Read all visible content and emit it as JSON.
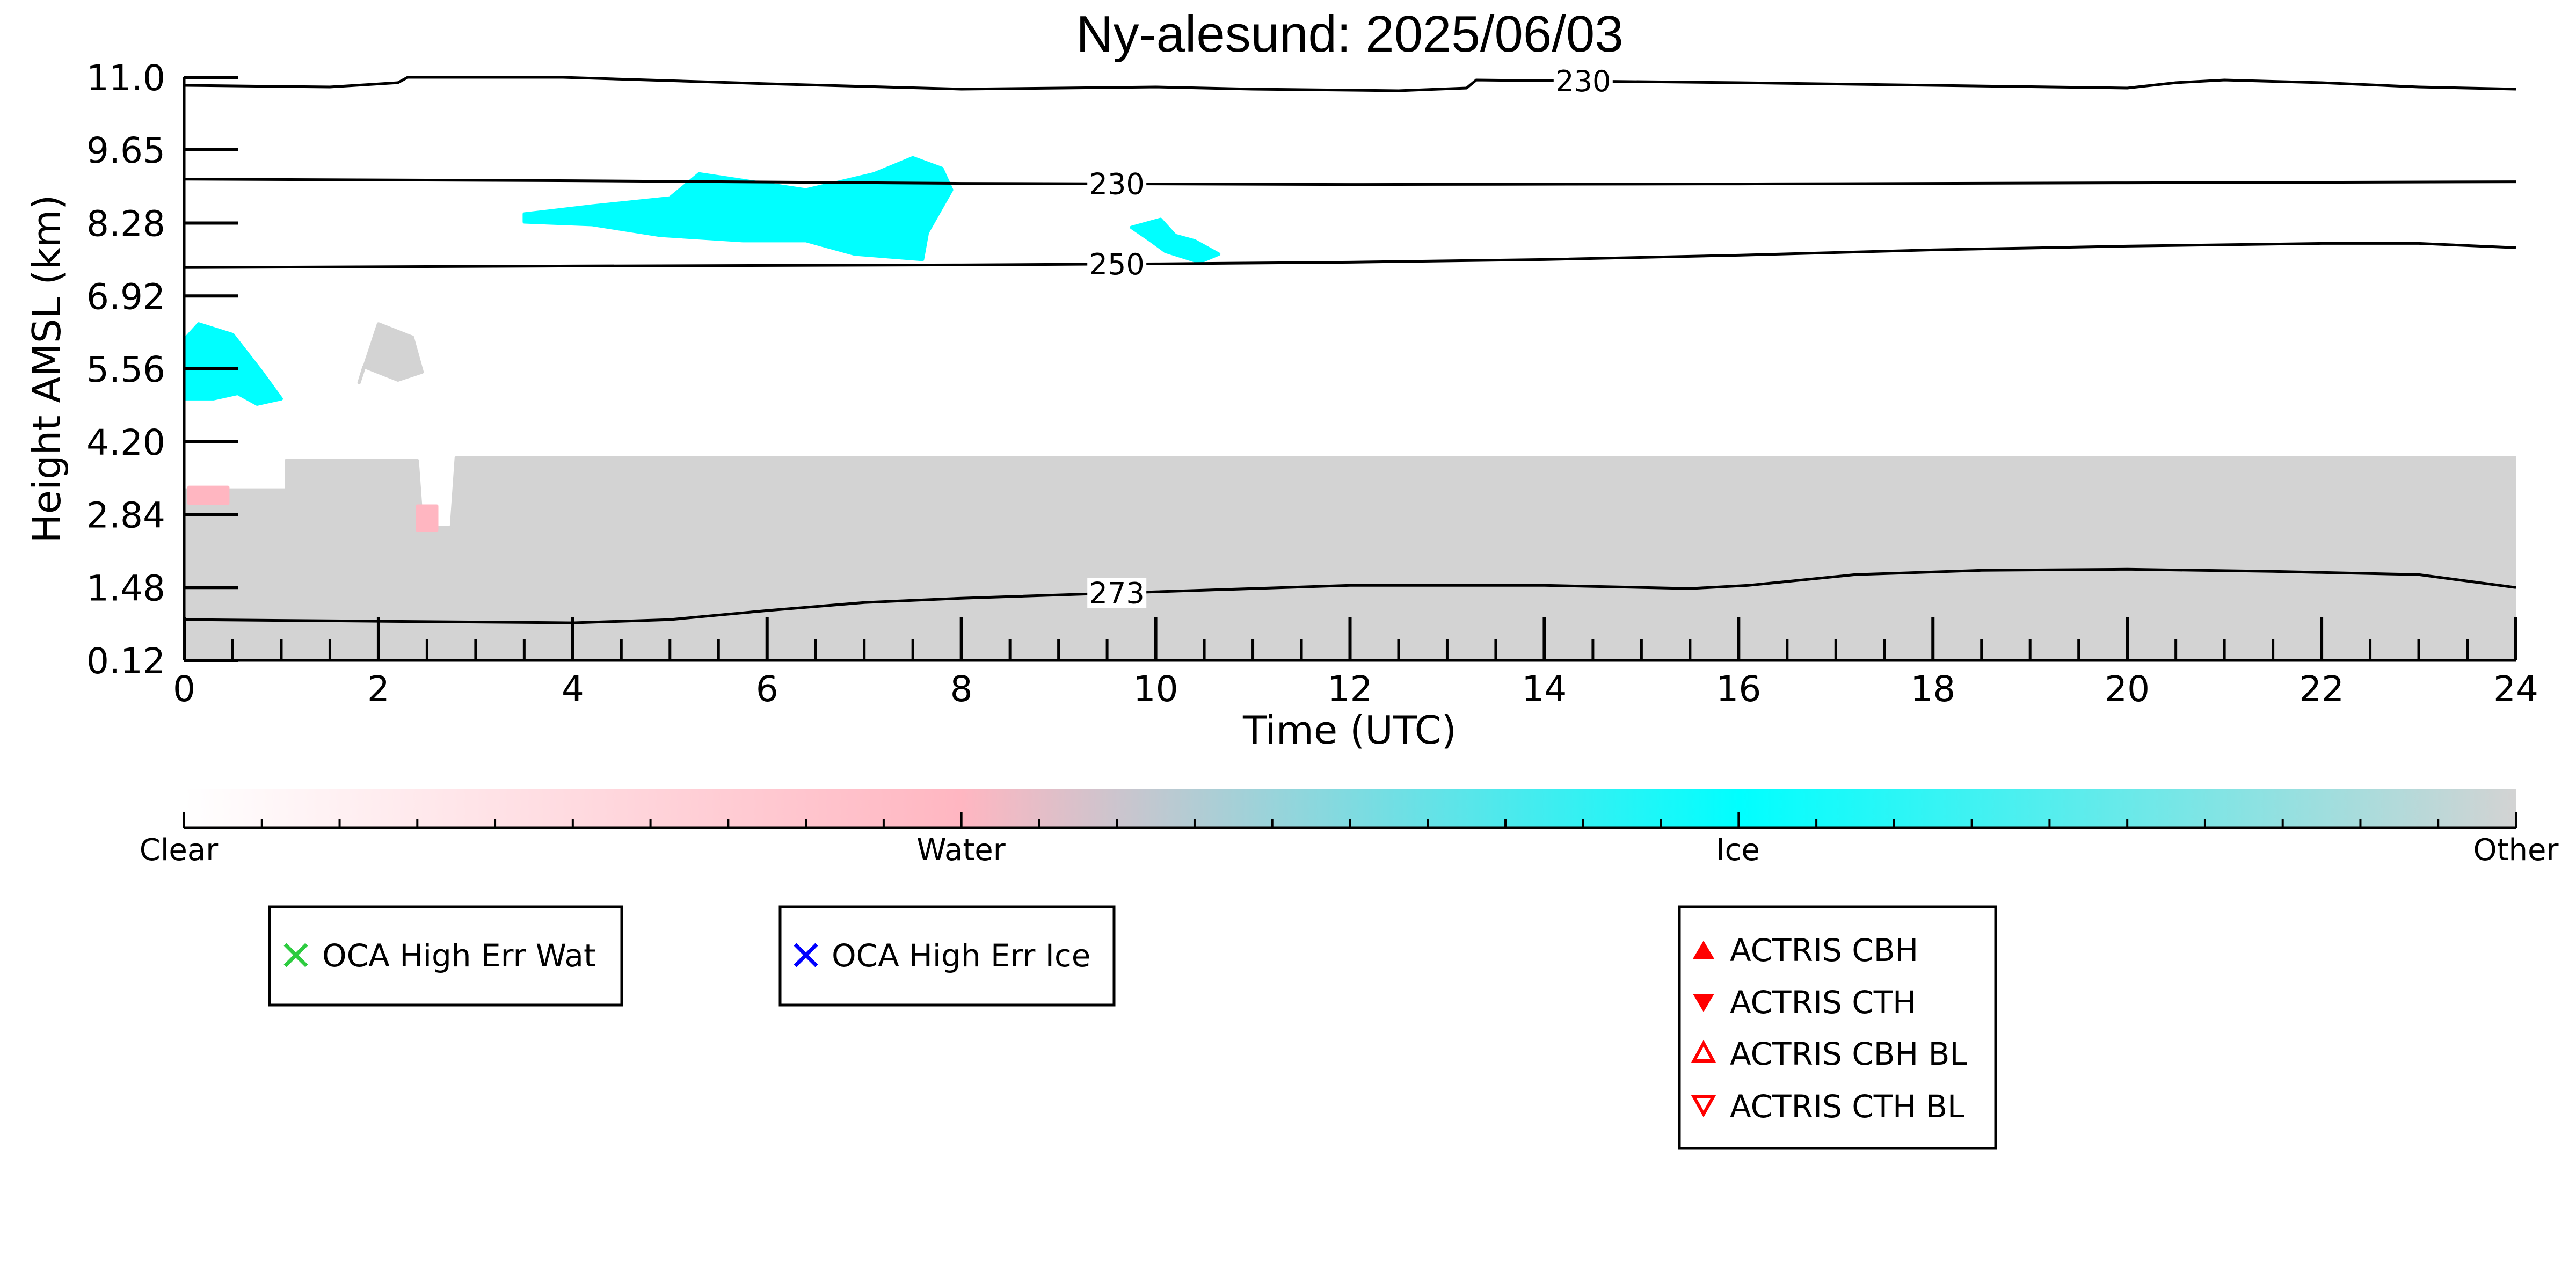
{
  "chart_data": {
    "type": "heatmap",
    "title": "Ny-alesund: 2025/06/03",
    "xlabel": "Time (UTC)",
    "ylabel": "Height AMSL (km)",
    "xlim": [
      0,
      24
    ],
    "ylim": [
      0.12,
      11.0
    ],
    "x_ticks": [
      0,
      2,
      4,
      6,
      8,
      10,
      12,
      14,
      16,
      18,
      20,
      22,
      24
    ],
    "x_tick_labels": [
      "0",
      "2",
      "4",
      "6",
      "8",
      "10",
      "12",
      "14",
      "16",
      "18",
      "20",
      "22",
      "24"
    ],
    "y_ticks": [
      0.12,
      1.48,
      2.84,
      4.2,
      5.56,
      6.92,
      8.28,
      9.65,
      11.0
    ],
    "y_tick_labels": [
      "0.12",
      "1.48",
      "2.84",
      "4.20",
      "5.56",
      "6.92",
      "8.28",
      "9.65",
      "11.0"
    ],
    "colorbar": {
      "labels": [
        "Clear",
        "Water",
        "Ice",
        "Other"
      ],
      "colors": [
        "#ffffff",
        "#ffb6c1",
        "#00ffff",
        "#d3d3d3"
      ]
    },
    "regions": [
      {
        "class": "Other",
        "color": "#d3d3d3",
        "x": [
          0.0,
          1.05,
          1.05,
          2.4,
          2.45,
          2.75,
          2.8,
          24.0,
          24.0,
          0.0
        ],
        "y": [
          3.3,
          3.3,
          3.85,
          3.85,
          2.6,
          2.6,
          3.9,
          3.9,
          0.12,
          0.12
        ]
      },
      {
        "class": "Other",
        "color": "#d3d3d3",
        "x": [
          1.8,
          2.0,
          2.35,
          2.45,
          2.2,
          1.85
        ],
        "y": [
          5.3,
          6.4,
          6.15,
          5.5,
          5.35,
          5.6
        ]
      },
      {
        "class": "Ice",
        "color": "#00ffff",
        "x": [
          0.0,
          0.3,
          0.55,
          0.75,
          1.0,
          0.8,
          0.5,
          0.15,
          0.0
        ],
        "y": [
          5.0,
          5.0,
          5.1,
          4.9,
          5.0,
          5.5,
          6.2,
          6.4,
          6.1
        ]
      },
      {
        "class": "Ice",
        "color": "#00ffff",
        "x": [
          3.5,
          4.2,
          5.0,
          5.3,
          6.4,
          7.1,
          7.5,
          7.8,
          7.9,
          7.65,
          7.6,
          6.9,
          6.4,
          5.75,
          4.9,
          4.2,
          3.5
        ],
        "y": [
          8.45,
          8.6,
          8.75,
          9.2,
          8.9,
          9.2,
          9.5,
          9.3,
          8.9,
          8.1,
          7.6,
          7.7,
          7.95,
          7.95,
          8.05,
          8.25,
          8.3
        ]
      },
      {
        "class": "Ice",
        "color": "#00ffff",
        "x": [
          9.75,
          10.05,
          10.2,
          10.4,
          10.65,
          10.45,
          10.1,
          9.95
        ],
        "y": [
          8.2,
          8.35,
          8.05,
          7.95,
          7.7,
          7.55,
          7.75,
          7.95
        ]
      },
      {
        "class": "Water",
        "color": "#ffb6c1",
        "x": [
          0.05,
          0.45,
          0.45,
          0.05
        ],
        "y": [
          3.35,
          3.35,
          3.05,
          3.05
        ]
      },
      {
        "class": "Water",
        "color": "#ffb6c1",
        "x": [
          2.4,
          2.6,
          2.6,
          2.4
        ],
        "y": [
          3.0,
          3.0,
          2.55,
          2.55
        ]
      }
    ],
    "contours": [
      {
        "label": "230",
        "label_x": 14.4,
        "x": [
          0,
          1.5,
          2.2,
          2.3,
          2.35,
          3.9,
          6.0,
          8.0,
          10.0,
          11.0,
          12.5,
          13.2,
          13.3,
          16.0,
          20.0,
          20.5,
          21.0,
          22.0,
          23.0,
          24.0
        ],
        "y": [
          10.85,
          10.82,
          10.9,
          11.0,
          11.0,
          11.0,
          10.88,
          10.78,
          10.82,
          10.78,
          10.75,
          10.8,
          10.95,
          10.9,
          10.8,
          10.9,
          10.95,
          10.9,
          10.82,
          10.78
        ]
      },
      {
        "label": "230",
        "label_x": 9.6,
        "x": [
          0,
          4,
          8,
          12,
          16,
          20,
          24
        ],
        "y": [
          9.1,
          9.07,
          9.02,
          9.0,
          9.01,
          9.03,
          9.05
        ]
      },
      {
        "label": "250",
        "label_x": 9.6,
        "x": [
          0,
          4,
          8,
          10,
          12,
          14,
          16,
          18,
          20,
          22,
          23,
          24
        ],
        "y": [
          7.45,
          7.48,
          7.5,
          7.52,
          7.55,
          7.6,
          7.68,
          7.78,
          7.85,
          7.9,
          7.9,
          7.82
        ]
      },
      {
        "label": "273",
        "label_x": 9.6,
        "x": [
          0,
          2,
          4,
          5,
          6,
          7,
          8,
          10,
          12,
          14,
          15.5,
          16.1,
          17.2,
          18.5,
          20.0,
          21.5,
          23.0,
          24.0
        ],
        "y": [
          0.88,
          0.85,
          0.82,
          0.88,
          1.05,
          1.2,
          1.28,
          1.4,
          1.52,
          1.52,
          1.46,
          1.52,
          1.72,
          1.8,
          1.82,
          1.78,
          1.72,
          1.48
        ]
      }
    ],
    "legends": [
      {
        "items": [
          {
            "label": "OCA High Err Wat",
            "marker": "x",
            "color": "#2ecc40"
          }
        ]
      },
      {
        "items": [
          {
            "label": "OCA High Err Ice",
            "marker": "x",
            "color": "#0000ff"
          }
        ]
      },
      {
        "items": [
          {
            "label": "ACTRIS CBH",
            "marker": "triangle-up-filled",
            "color": "#ff0000"
          },
          {
            "label": "ACTRIS CTH",
            "marker": "triangle-down-filled",
            "color": "#ff0000"
          },
          {
            "label": "ACTRIS CBH BL",
            "marker": "triangle-up-open",
            "color": "#ff0000"
          },
          {
            "label": "ACTRIS CTH BL",
            "marker": "triangle-down-open",
            "color": "#ff0000"
          }
        ]
      }
    ]
  }
}
